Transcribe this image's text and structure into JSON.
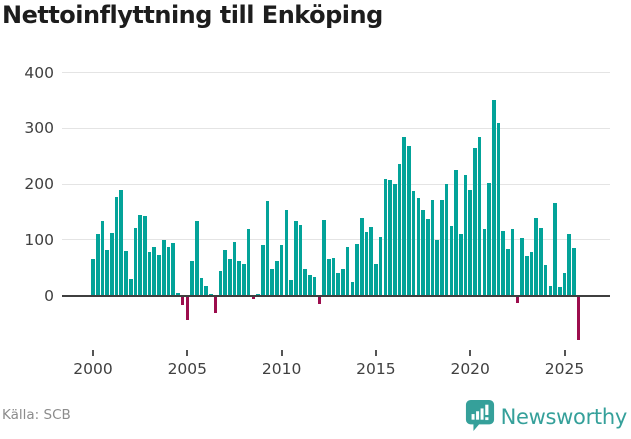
{
  "title": "Nettoinflyttning till Enköping",
  "source": "Källa: SCB",
  "brand": {
    "name": "Newsworthy",
    "color": "#35a09a"
  },
  "colors": {
    "positive_bar": "#03a399",
    "negative_bar": "#9c0d4d",
    "gridline": "#e4e4e4",
    "zero_axis": "#3f3f3f",
    "axis_text": "#404040",
    "title_text": "#1d1d1d",
    "muted_text": "#8c8c8c"
  },
  "chart_data": {
    "type": "bar",
    "title": "Nettoinflyttning till Enköping",
    "xlabel": "",
    "ylabel": "",
    "frequency": "quarterly",
    "start_period": "2000-Q1",
    "end_period": "2025-Q4",
    "x_tick_labels": [
      "2000",
      "2005",
      "2010",
      "2015",
      "2020",
      "2025"
    ],
    "y_ticks": [
      0,
      100,
      200,
      300,
      400
    ],
    "ylim": [
      -100,
      420
    ],
    "grid": "horizontal",
    "legend": "none",
    "values": [
      66,
      110,
      134,
      82,
      112,
      177,
      190,
      80,
      30,
      121,
      145,
      142,
      79,
      88,
      73,
      100,
      88,
      95,
      5,
      -15,
      -42,
      62,
      134,
      32,
      17,
      3,
      -30,
      44,
      82,
      66,
      96,
      62,
      57,
      119,
      -5,
      3,
      90,
      169,
      47,
      62,
      91,
      154,
      27,
      133,
      126,
      48,
      36,
      33,
      -13,
      135,
      66,
      68,
      40,
      48,
      87,
      24,
      92,
      139,
      114,
      123,
      57,
      105,
      210,
      207,
      200,
      237,
      285,
      268,
      187,
      175,
      153,
      138,
      171,
      99,
      172,
      200,
      125,
      226,
      110,
      217,
      189,
      265,
      284,
      120,
      202,
      351,
      310,
      116,
      84,
      120,
      -12,
      103,
      71,
      79,
      140,
      121,
      54,
      17,
      166,
      16,
      40,
      111,
      86,
      -79
    ]
  }
}
